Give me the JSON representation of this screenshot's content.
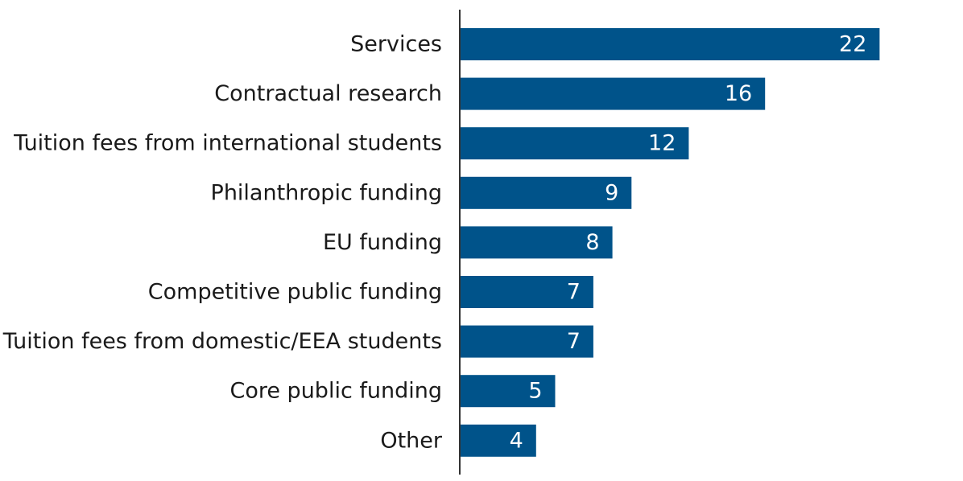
{
  "chart_data": {
    "type": "bar",
    "orientation": "horizontal",
    "title": "",
    "xlabel": "",
    "ylabel": "",
    "categories": [
      "Services",
      "Contractual research",
      "Tuition fees from international students",
      "Philanthropic funding",
      "EU funding",
      "Competitive public funding",
      "Tuition fees from domestic/EEA students",
      "Core public funding",
      "Other"
    ],
    "values": [
      22,
      16,
      12,
      9,
      8,
      7,
      7,
      5,
      4
    ],
    "value_labels": [
      "22",
      "16",
      "12",
      "9",
      "8",
      "7",
      "7",
      "5",
      "4"
    ],
    "xlim": [
      0,
      25
    ],
    "grid": false,
    "legend": "none",
    "bar_color": "#00538a",
    "axis_color": "#333333"
  }
}
